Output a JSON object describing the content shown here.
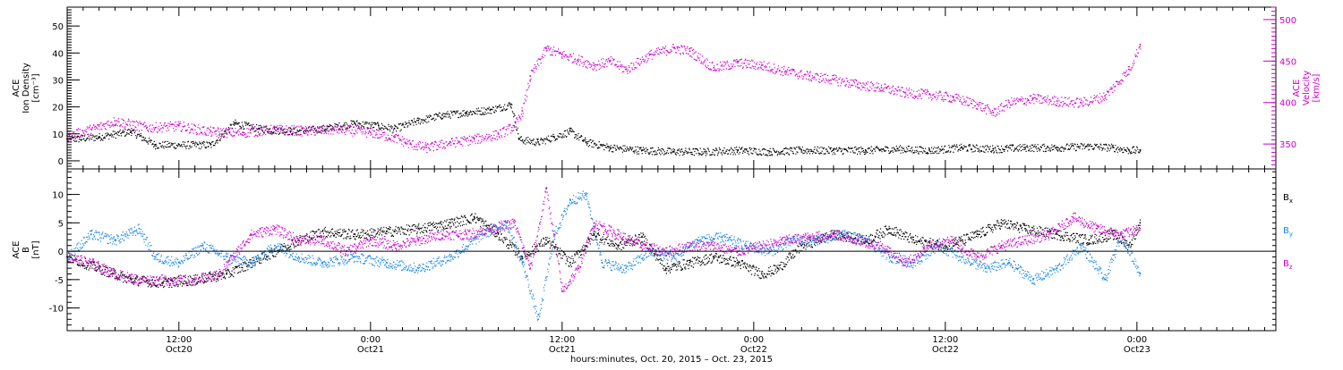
{
  "chart_data": {
    "type": "scatter",
    "xlabel": "hours:minutes, Oct. 20, 2015 – Oct. 23, 2015",
    "x_unit": "hours since 2015-10-20 00:00",
    "xlim": [
      5.0,
      80.7
    ],
    "x_ticks": [
      {
        "x": 12,
        "label1": "12:00",
        "label2": "Oct20"
      },
      {
        "x": 24,
        "label1": "0:00",
        "label2": "Oct21"
      },
      {
        "x": 36,
        "label1": "12:00",
        "label2": "Oct21"
      },
      {
        "x": 48,
        "label1": "0:00",
        "label2": "Oct22"
      },
      {
        "x": 60,
        "label1": "12:00",
        "label2": "Oct22"
      },
      {
        "x": 72,
        "label1": "0:00",
        "label2": "Oct23"
      }
    ],
    "panels": [
      {
        "id": "top",
        "left_axis": {
          "label_lines": [
            "ACE",
            "Ion Density",
            "[cm⁻³]"
          ],
          "ylim": [
            -3,
            57
          ],
          "ticks": [
            0,
            10,
            20,
            30,
            40,
            50
          ],
          "color": "#000000"
        },
        "right_axis": {
          "label_lines": [
            "ACE",
            "Velocity",
            "[km/s]"
          ],
          "ylim": [
            320,
            515
          ],
          "ticks": [
            350,
            400,
            450,
            500
          ],
          "color": "#cc00cc"
        },
        "series": [
          {
            "axis": "left",
            "color": "#000000",
            "points": [
              [
                5,
                8
              ],
              [
                7,
                9
              ],
              [
                9,
                11
              ],
              [
                10.5,
                6
              ],
              [
                12,
                6
              ],
              [
                14,
                6
              ],
              [
                15.5,
                14
              ],
              [
                17,
                12
              ],
              [
                19,
                11
              ],
              [
                21,
                12
              ],
              [
                23,
                14
              ],
              [
                24.5,
                13
              ],
              [
                25.5,
                12
              ],
              [
                27,
                15
              ],
              [
                28.5,
                17
              ],
              [
                30,
                18
              ],
              [
                31.5,
                19
              ],
              [
                32.8,
                21
              ],
              [
                33.3,
                8
              ],
              [
                34.5,
                7
              ],
              [
                35.5,
                9
              ],
              [
                36.5,
                11
              ],
              [
                37.5,
                7
              ],
              [
                39,
                5
              ],
              [
                41,
                4
              ],
              [
                43,
                3.5
              ],
              [
                45,
                3.5
              ],
              [
                47,
                4
              ],
              [
                49,
                3.5
              ],
              [
                51,
                4
              ],
              [
                53,
                4
              ],
              [
                55,
                4
              ],
              [
                57,
                4.5
              ],
              [
                59,
                4
              ],
              [
                61,
                5
              ],
              [
                63,
                4.5
              ],
              [
                65,
                5
              ],
              [
                67,
                5
              ],
              [
                69,
                5.5
              ],
              [
                70.5,
                5
              ],
              [
                71.5,
                4
              ],
              [
                72.2,
                4
              ]
            ]
          },
          {
            "axis": "right",
            "color": "#cc00cc",
            "points": [
              [
                5,
                360
              ],
              [
                6.5,
                368
              ],
              [
                8,
                378
              ],
              [
                10,
                370
              ],
              [
                12,
                372
              ],
              [
                14,
                365
              ],
              [
                16,
                364
              ],
              [
                18,
                368
              ],
              [
                20,
                366
              ],
              [
                22,
                368
              ],
              [
                24,
                364
              ],
              [
                25.5,
                358
              ],
              [
                26.5,
                350
              ],
              [
                27.5,
                346
              ],
              [
                29,
                352
              ],
              [
                30.5,
                356
              ],
              [
                32,
                362
              ],
              [
                33,
                372
              ],
              [
                33.5,
                390
              ],
              [
                34,
                432
              ],
              [
                35,
                465
              ],
              [
                36,
                458
              ],
              [
                37,
                452
              ],
              [
                38,
                445
              ],
              [
                39,
                450
              ],
              [
                40,
                440
              ],
              [
                41.5,
                458
              ],
              [
                43,
                466
              ],
              [
                44,
                462
              ],
              [
                45.5,
                442
              ],
              [
                47,
                448
              ],
              [
                48.5,
                445
              ],
              [
                50,
                438
              ],
              [
                51.5,
                432
              ],
              [
                53,
                428
              ],
              [
                54.5,
                422
              ],
              [
                56,
                418
              ],
              [
                57.5,
                412
              ],
              [
                59,
                410
              ],
              [
                60.5,
                406
              ],
              [
                62,
                398
              ],
              [
                63,
                388
              ],
              [
                64,
                400
              ],
              [
                65.5,
                405
              ],
              [
                67,
                402
              ],
              [
                68.5,
                400
              ],
              [
                70,
                408
              ],
              [
                71.5,
                440
              ],
              [
                72.2,
                470
              ]
            ]
          }
        ]
      },
      {
        "id": "bottom",
        "left_axis": {
          "label_lines": [
            "ACE",
            "B",
            "[nT]"
          ],
          "ylim": [
            -14,
            14.5
          ],
          "ticks": [
            -10,
            -5,
            0,
            5,
            10
          ],
          "color": "#000000"
        },
        "legend_position": "right",
        "series": [
          {
            "name": "B",
            "sub": "x",
            "color": "#000000",
            "points": [
              [
                5,
                -1
              ],
              [
                7,
                -3
              ],
              [
                9,
                -5
              ],
              [
                11,
                -5.5
              ],
              [
                13,
                -5
              ],
              [
                15,
                -4
              ],
              [
                16.5,
                -2
              ],
              [
                18,
                0
              ],
              [
                19.5,
                2
              ],
              [
                21,
                3.5
              ],
              [
                23,
                3
              ],
              [
                25,
                3.5
              ],
              [
                27,
                4
              ],
              [
                29,
                5
              ],
              [
                30.5,
                6
              ],
              [
                32,
                3
              ],
              [
                33.5,
                -1
              ],
              [
                35,
                2
              ],
              [
                36.5,
                -2
              ],
              [
                38,
                3
              ],
              [
                39.5,
                1
              ],
              [
                41,
                2.5
              ],
              [
                42.5,
                -3
              ],
              [
                44,
                -2
              ],
              [
                45.5,
                -1
              ],
              [
                47,
                -2
              ],
              [
                48.5,
                -4
              ],
              [
                49.5,
                -3
              ],
              [
                51,
                1
              ],
              [
                53,
                3
              ],
              [
                55,
                2
              ],
              [
                56.5,
                4
              ],
              [
                58,
                2
              ],
              [
                60,
                1
              ],
              [
                62,
                3
              ],
              [
                63.5,
                5
              ],
              [
                65,
                4
              ],
              [
                67,
                3
              ],
              [
                69,
                2
              ],
              [
                70.5,
                3
              ],
              [
                71.5,
                1
              ],
              [
                72.2,
                5
              ]
            ]
          },
          {
            "name": "B",
            "sub": "y",
            "color": "#1e88e5",
            "points": [
              [
                5,
                -1
              ],
              [
                6.5,
                3
              ],
              [
                8,
                2
              ],
              [
                9.5,
                4
              ],
              [
                10.5,
                -1
              ],
              [
                12,
                -2
              ],
              [
                13.5,
                1
              ],
              [
                15,
                -1
              ],
              [
                16.5,
                -2
              ],
              [
                18,
                1
              ],
              [
                19.5,
                -1
              ],
              [
                21,
                -2
              ],
              [
                23,
                -1
              ],
              [
                25,
                -2
              ],
              [
                27,
                -3
              ],
              [
                29,
                -1
              ],
              [
                31,
                3
              ],
              [
                32.5,
                5
              ],
              [
                33.5,
                -2
              ],
              [
                34.5,
                -12
              ],
              [
                35.5,
                3
              ],
              [
                36.5,
                9
              ],
              [
                37.5,
                10
              ],
              [
                38.5,
                -2
              ],
              [
                40,
                -3
              ],
              [
                41.5,
                0
              ],
              [
                43,
                -1
              ],
              [
                44.5,
                2
              ],
              [
                46,
                2.5
              ],
              [
                47.5,
                1
              ],
              [
                49,
                0
              ],
              [
                50.5,
                2
              ],
              [
                52,
                2
              ],
              [
                53.5,
                3
              ],
              [
                55,
                2
              ],
              [
                56.5,
                -1
              ],
              [
                58,
                -2
              ],
              [
                59.5,
                1
              ],
              [
                61,
                -1
              ],
              [
                62.5,
                -3
              ],
              [
                64,
                -2
              ],
              [
                65.5,
                -5
              ],
              [
                67,
                -3
              ],
              [
                68.5,
                1
              ],
              [
                70,
                -5
              ],
              [
                71,
                3
              ],
              [
                72.2,
                -4
              ]
            ]
          },
          {
            "name": "B",
            "sub": "z",
            "color": "#cc00cc",
            "points": [
              [
                5,
                -1
              ],
              [
                6.5,
                -2
              ],
              [
                8,
                -4
              ],
              [
                9.5,
                -5
              ],
              [
                11.5,
                -5
              ],
              [
                13,
                -5
              ],
              [
                14.5,
                -4
              ],
              [
                16.5,
                3
              ],
              [
                18,
                4
              ],
              [
                19.5,
                2
              ],
              [
                21,
                2
              ],
              [
                22.5,
                0
              ],
              [
                24,
                2
              ],
              [
                25.5,
                1
              ],
              [
                27,
                2
              ],
              [
                28.5,
                3
              ],
              [
                30,
                3
              ],
              [
                31.5,
                4
              ],
              [
                33,
                5
              ],
              [
                34,
                -3
              ],
              [
                35,
                11
              ],
              [
                36,
                -7
              ],
              [
                37,
                -3
              ],
              [
                38,
                5
              ],
              [
                39.5,
                3
              ],
              [
                41,
                1
              ],
              [
                42.5,
                0
              ],
              [
                44,
                1
              ],
              [
                45.5,
                1
              ],
              [
                47,
                0
              ],
              [
                48.5,
                1
              ],
              [
                50,
                2
              ],
              [
                51.5,
                2.5
              ],
              [
                53,
                3
              ],
              [
                54.5,
                2
              ],
              [
                56,
                1
              ],
              [
                57.5,
                -2
              ],
              [
                59,
                1
              ],
              [
                60.5,
                2
              ],
              [
                62,
                -1
              ],
              [
                63.5,
                1
              ],
              [
                65,
                2
              ],
              [
                66.5,
                3
              ],
              [
                68,
                6
              ],
              [
                69.5,
                4
              ],
              [
                71,
                3
              ],
              [
                72.2,
                4
              ]
            ]
          }
        ]
      }
    ]
  }
}
